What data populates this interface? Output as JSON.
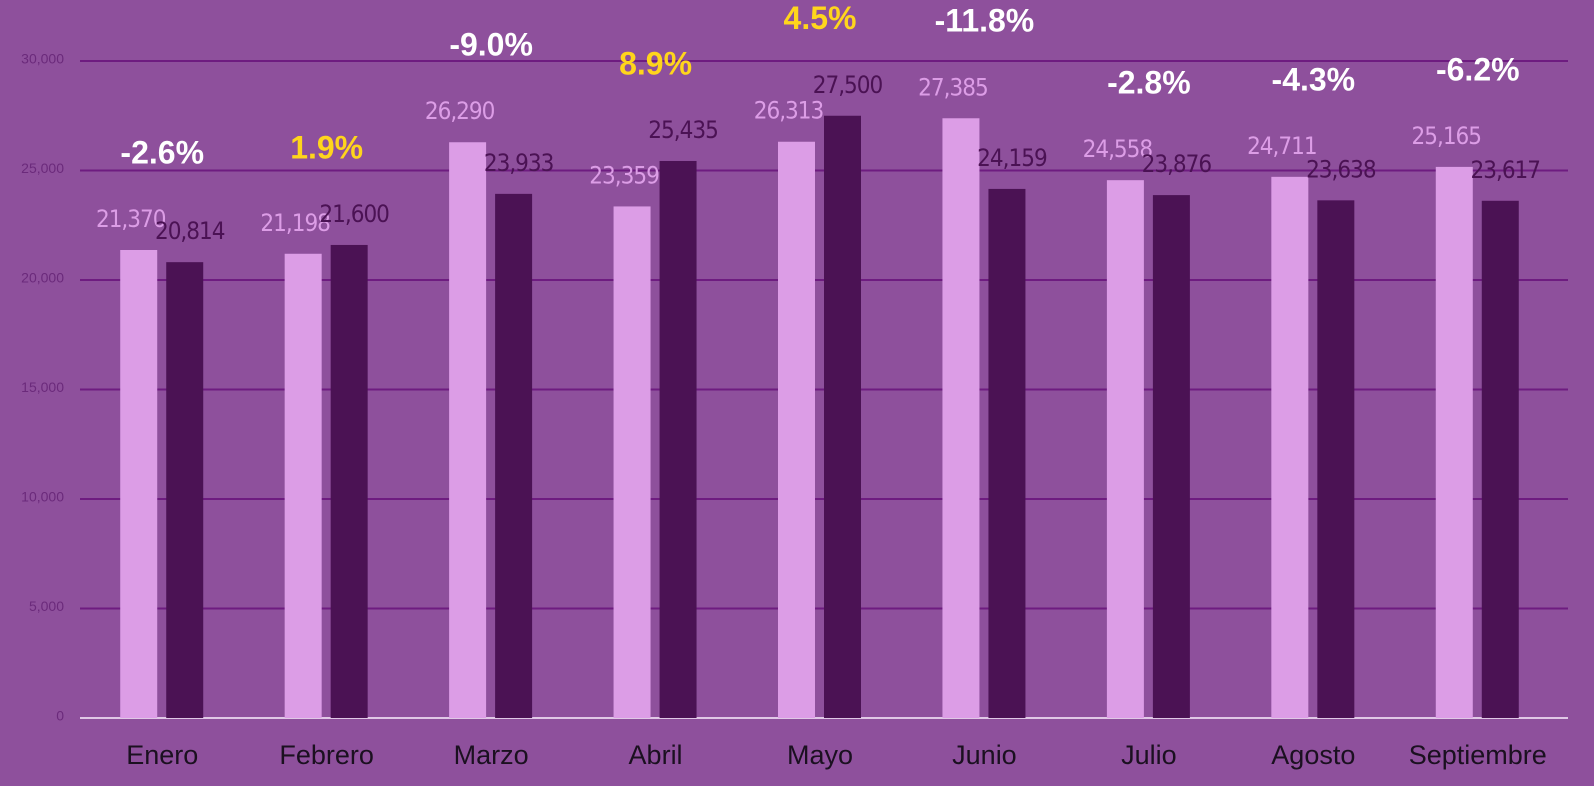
{
  "chart_data": {
    "type": "bar",
    "categories": [
      "Enero",
      "Febrero",
      "Marzo",
      "Abril",
      "Mayo",
      "Junio",
      "Julio",
      "Agosto",
      "Septiembre"
    ],
    "series": [
      {
        "color": "#dc9de6",
        "values": [
          21370,
          21198,
          26290,
          23359,
          26313,
          27385,
          24558,
          24711,
          25165
        ],
        "value_labels": [
          "21,370",
          "21,198",
          "26,290",
          "23,359",
          "26,313",
          "27,385",
          "24,558",
          "24,711",
          "25,165"
        ]
      },
      {
        "color": "#4b1254",
        "values": [
          20814,
          21600,
          23933,
          25435,
          27500,
          24159,
          23876,
          23638,
          23617
        ],
        "value_labels": [
          "20,814",
          "21,600",
          "23,933",
          "25,435",
          "27,500",
          "24,159",
          "23,876",
          "23,638",
          "23,617"
        ]
      }
    ],
    "annotations": [
      {
        "text": "-2.6%",
        "color": "#ffffff"
      },
      {
        "text": "1.9%",
        "color": "#ffd51c"
      },
      {
        "text": "-9.0%",
        "color": "#ffffff"
      },
      {
        "text": "8.9%",
        "color": "#ffd51c"
      },
      {
        "text": "4.5%",
        "color": "#ffd51c"
      },
      {
        "text": "-11.8%",
        "color": "#ffffff"
      },
      {
        "text": "-2.8%",
        "color": "#ffffff"
      },
      {
        "text": "-4.3%",
        "color": "#ffffff"
      },
      {
        "text": "-6.2%",
        "color": "#ffffff"
      }
    ],
    "ylim": [
      0,
      30000
    ],
    "yticks": [
      0,
      {
        "value": 5000,
        "label": "5,000"
      },
      {
        "value": 10000,
        "label": "10,000"
      },
      {
        "value": 15000,
        "label": "15,000"
      },
      {
        "value": 20000,
        "label": "20,000"
      },
      {
        "value": 25000,
        "label": "25,000"
      },
      {
        "value": 30000,
        "label": "30,000"
      }
    ],
    "grid": true
  }
}
